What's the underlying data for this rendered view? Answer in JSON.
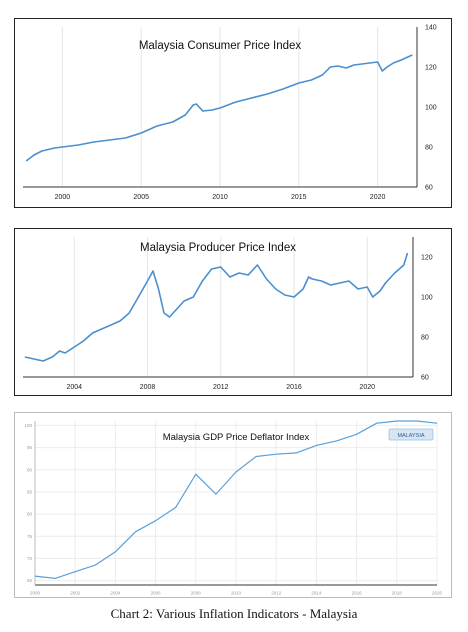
{
  "chart_data": [
    {
      "type": "line",
      "title": "Malaysia Consumer Price Index",
      "xlabel": "",
      "ylabel": "",
      "xlim": [
        1997.5,
        2022.5
      ],
      "ylim": [
        60,
        140
      ],
      "xticks": [
        2000,
        2005,
        2010,
        2015,
        2020
      ],
      "xtick_labels": [
        "2000",
        "2005",
        "2010",
        "2015",
        "2020"
      ],
      "yticks": [
        60,
        80,
        100,
        120,
        140
      ],
      "ytick_labels": [
        "60",
        "80",
        "100",
        "120",
        "140"
      ],
      "grid": "vertical",
      "series": [
        {
          "x": [
            1997.7,
            1998.2,
            1998.7,
            1999.5,
            2000,
            2001,
            2002,
            2003,
            2004,
            2005,
            2006,
            2007,
            2007.8,
            2008.3,
            2008.5,
            2008.9,
            2009.5,
            2010,
            2011,
            2012,
            2013,
            2014,
            2015,
            2015.8,
            2016.5,
            2017,
            2017.5,
            2018,
            2018.5,
            2019,
            2019.5,
            2020,
            2020.3,
            2020.6,
            2021,
            2021.5,
            2022.2
          ],
          "y": [
            73,
            76,
            78,
            79.5,
            80,
            81,
            82.5,
            83.5,
            84.5,
            87,
            90.5,
            92.5,
            96,
            101,
            101.5,
            98,
            98.5,
            99.5,
            102.5,
            104.5,
            106.5,
            109,
            112,
            113.5,
            116,
            120,
            120.5,
            119.5,
            121,
            121.5,
            122,
            122.5,
            118,
            120,
            122,
            123.5,
            126
          ]
        }
      ],
      "color": "#4a8fd0"
    },
    {
      "type": "line",
      "title": "Malaysia Producer Price Index",
      "xlabel": "",
      "ylabel": "",
      "xlim": [
        2001.2,
        2022.5
      ],
      "ylim": [
        60,
        130
      ],
      "xticks": [
        2004,
        2008,
        2012,
        2016,
        2020
      ],
      "xtick_labels": [
        "2004",
        "2008",
        "2012",
        "2016",
        "2020"
      ],
      "yticks": [
        60,
        80,
        100,
        120
      ],
      "ytick_labels": [
        "60",
        "80",
        "100",
        "120"
      ],
      "grid": "vertical",
      "series": [
        {
          "x": [
            2001.3,
            2001.8,
            2002.3,
            2002.8,
            2003.2,
            2003.5,
            2004,
            2004.5,
            2005,
            2005.5,
            2006,
            2006.5,
            2007,
            2007.5,
            2008,
            2008.3,
            2008.6,
            2008.9,
            2009.2,
            2009.6,
            2010,
            2010.5,
            2011,
            2011.5,
            2012,
            2012.5,
            2013,
            2013.5,
            2014,
            2014.5,
            2015,
            2015.5,
            2016,
            2016.5,
            2016.8,
            2017,
            2017.5,
            2018,
            2018.5,
            2019,
            2019.5,
            2020,
            2020.3,
            2020.7,
            2021,
            2021.5,
            2022,
            2022.2
          ],
          "y": [
            70,
            69,
            68,
            70,
            73,
            72,
            75,
            78,
            82,
            84,
            86,
            88,
            92,
            100,
            108,
            113,
            104,
            92,
            90,
            94,
            98,
            100,
            108,
            114,
            115,
            110,
            112,
            111,
            116,
            109,
            104,
            101,
            100,
            104,
            110,
            109,
            108,
            106,
            107,
            108,
            104,
            105,
            100,
            103,
            107,
            112,
            116,
            122
          ]
        }
      ],
      "color": "#4a8fd0"
    },
    {
      "type": "line",
      "title": "Malaysia GDP Price Deflator Index",
      "xlabel": "",
      "ylabel": "",
      "xlim": [
        2000,
        2020
      ],
      "ylim": [
        64,
        101
      ],
      "xticks": [
        2000,
        2002,
        2004,
        2006,
        2008,
        2010,
        2012,
        2014,
        2016,
        2018,
        2020
      ],
      "xtick_labels": [
        "2000",
        "2002",
        "2004",
        "2006",
        "2008",
        "2010",
        "2012",
        "2014",
        "2016",
        "2018",
        "2020"
      ],
      "yticks": [
        65,
        70,
        75,
        80,
        85,
        90,
        95,
        100
      ],
      "ytick_labels": [
        "65",
        "70",
        "75",
        "80",
        "85",
        "90",
        "95",
        "100"
      ],
      "grid": "both",
      "legend": {
        "position": "top-right",
        "label": "MALAYSIA"
      },
      "series": [
        {
          "name": "MALAYSIA",
          "x": [
            2000,
            2001,
            2002,
            2003,
            2004,
            2005,
            2006,
            2007,
            2008,
            2009,
            2010,
            2011,
            2012,
            2013,
            2014,
            2015,
            2016,
            2017,
            2018,
            2019,
            2020
          ],
          "y": [
            66,
            65.5,
            67,
            68.5,
            71.5,
            76,
            78.5,
            81.5,
            89,
            84.5,
            89.5,
            93,
            93.5,
            93.8,
            95.5,
            96.5,
            98,
            100.5,
            101,
            101,
            100.5
          ]
        }
      ],
      "color": "#5aa0da"
    }
  ],
  "caption": "Chart 2: Various Inflation Indicators - Malaysia"
}
